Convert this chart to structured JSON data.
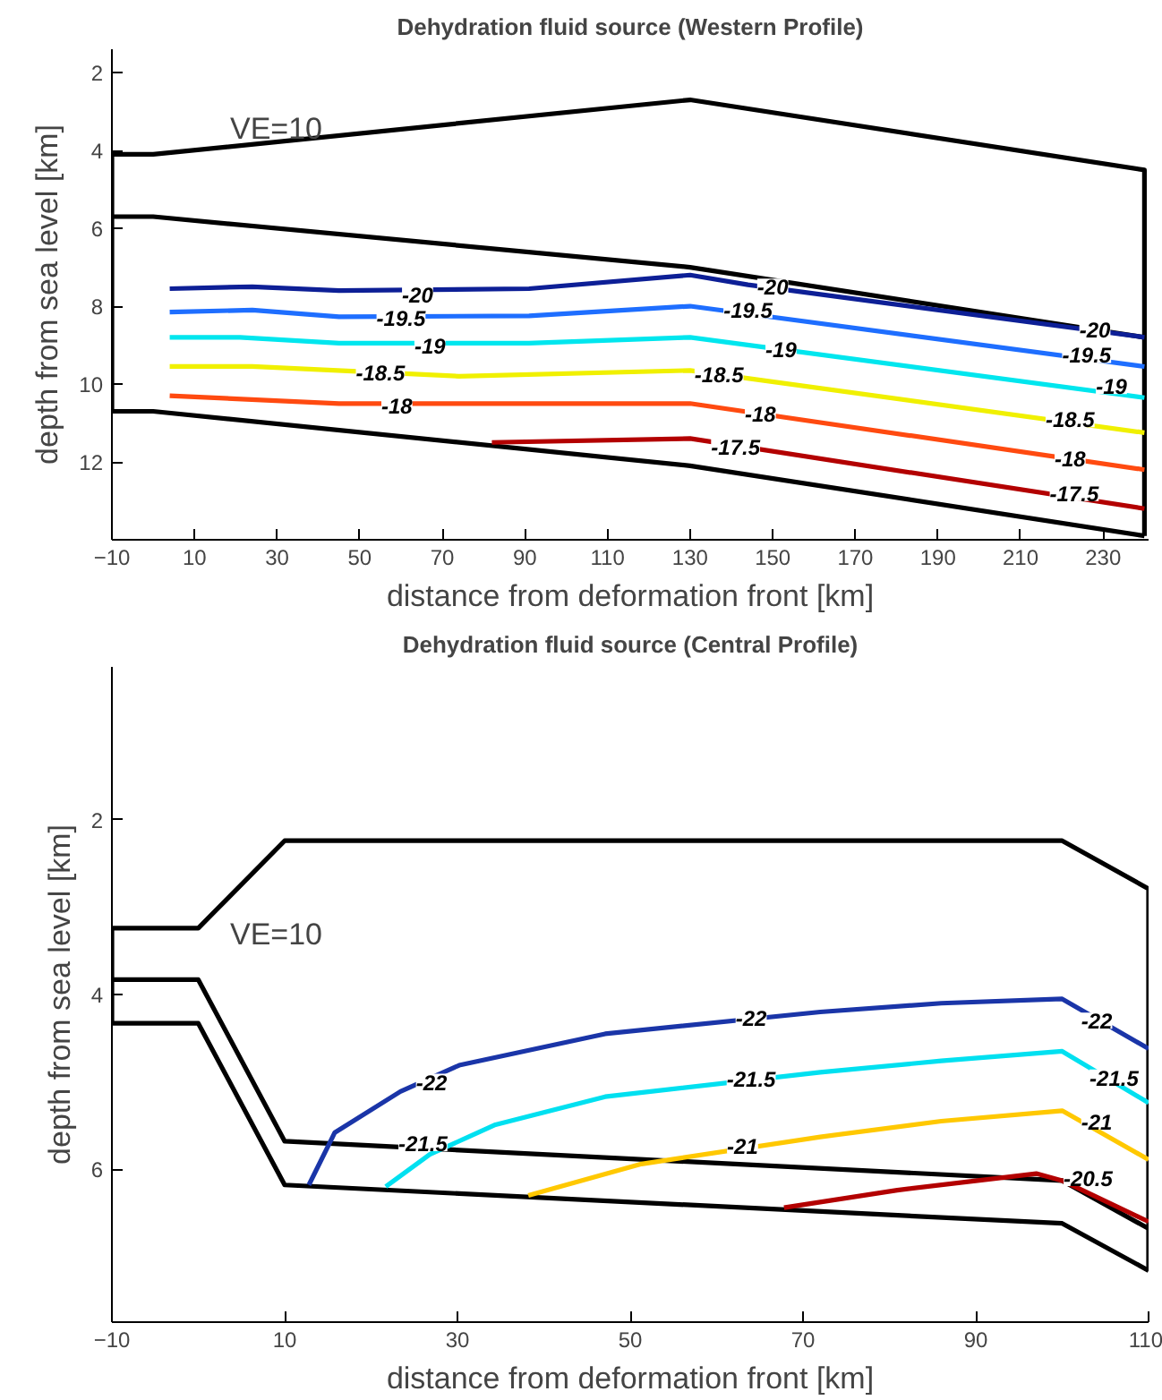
{
  "chart_data": [
    {
      "type": "line",
      "title": "Dehydration fluid source (Western Profile)",
      "xlabel": "distance from deformation front [km]",
      "ylabel": "depth from sea level [km]",
      "xlim": [
        -10,
        241
      ],
      "ylim": [
        14.0,
        1.4
      ],
      "xticks": [
        -10,
        10,
        30,
        50,
        70,
        90,
        110,
        130,
        150,
        170,
        190,
        210,
        230
      ],
      "yticks": [
        2,
        4,
        6,
        8,
        10,
        12
      ],
      "grid": false,
      "series": [
        {
          "color": "#000000",
          "x": [
            -10,
            -10,
            0,
            130,
            240,
            240
          ],
          "values": [
            10.7,
            4.1,
            4.1,
            2.7,
            4.5,
            13.9
          ]
        },
        {
          "color": "#000000",
          "x": [
            -10,
            0,
            130,
            240
          ],
          "values": [
            5.7,
            5.7,
            7.0,
            8.8
          ]
        },
        {
          "color": "#000000",
          "x": [
            -10,
            0,
            130,
            240
          ],
          "values": [
            10.7,
            10.7,
            12.1,
            13.9
          ]
        },
        {
          "color": "#0d1f96",
          "x": [
            4,
            24,
            45,
            91,
            130,
            144,
            240
          ],
          "values": [
            7.55,
            7.5,
            7.6,
            7.55,
            7.2,
            7.45,
            8.8
          ]
        },
        {
          "color": "#1e6eff",
          "x": [
            4,
            24,
            45,
            91,
            130,
            240
          ],
          "values": [
            8.15,
            8.1,
            8.27,
            8.25,
            8.0,
            9.55
          ]
        },
        {
          "color": "#00e6ee",
          "x": [
            4,
            21,
            45,
            91,
            130,
            240
          ],
          "values": [
            8.8,
            8.8,
            8.95,
            8.95,
            8.8,
            10.35
          ]
        },
        {
          "color": "#f0f000",
          "x": [
            4,
            24,
            74,
            130,
            240
          ],
          "values": [
            9.55,
            9.55,
            9.8,
            9.65,
            11.25
          ]
        },
        {
          "color": "#ff4a10",
          "x": [
            4,
            45,
            130,
            240
          ],
          "values": [
            10.3,
            10.5,
            10.5,
            12.2
          ]
        },
        {
          "color": "#b30000",
          "x": [
            82,
            130,
            240
          ],
          "values": [
            11.5,
            11.4,
            13.2
          ]
        }
      ],
      "annotations": [
        "VE=10",
        {
          "text": "-20",
          "x": 64,
          "y": 7.7
        },
        {
          "text": "-20",
          "x": 150,
          "y": 7.5
        },
        {
          "text": "-20",
          "x": 228,
          "y": 8.6
        },
        {
          "text": "-19.5",
          "x": 60,
          "y": 8.3
        },
        {
          "text": "-19.5",
          "x": 144,
          "y": 8.1
        },
        {
          "text": "-19.5",
          "x": 226,
          "y": 9.25
        },
        {
          "text": "-19",
          "x": 67,
          "y": 9.0
        },
        {
          "text": "-19",
          "x": 152,
          "y": 9.1
        },
        {
          "text": "-19",
          "x": 232,
          "y": 10.05
        },
        {
          "text": "-18.5",
          "x": 55,
          "y": 9.7
        },
        {
          "text": "-18.5",
          "x": 137,
          "y": 9.75
        },
        {
          "text": "-18.5",
          "x": 222,
          "y": 10.9
        },
        {
          "text": "-18",
          "x": 59,
          "y": 10.55
        },
        {
          "text": "-18",
          "x": 147,
          "y": 10.75
        },
        {
          "text": "-18",
          "x": 222,
          "y": 11.9
        },
        {
          "text": "-17.5",
          "x": 141,
          "y": 11.6
        },
        {
          "text": "-17.5",
          "x": 223,
          "y": 12.8
        }
      ]
    },
    {
      "type": "line",
      "title": "Dehydration fluid source (Central Profile)",
      "xlabel": "distance from deformation front [km]",
      "ylabel": "depth from sea level [km]",
      "xlim": [
        -10,
        110
      ],
      "ylim": [
        7.75,
        0.25
      ],
      "xticks": [
        -10,
        10,
        30,
        50,
        70,
        90,
        110
      ],
      "yticks": [
        2,
        4,
        6
      ],
      "grid": false,
      "series": [
        {
          "color": "#000000",
          "x": [
            -10,
            -10,
            0,
            10,
            100,
            110,
            110
          ],
          "values": [
            4.33,
            3.24,
            3.24,
            2.24,
            2.24,
            2.79,
            7.16
          ]
        },
        {
          "color": "#000000",
          "x": [
            -10,
            0,
            10,
            100,
            110
          ],
          "values": [
            3.83,
            3.83,
            5.68,
            6.13,
            6.68
          ]
        },
        {
          "color": "#000000",
          "x": [
            -10,
            0,
            10,
            100,
            110
          ],
          "values": [
            4.33,
            4.33,
            6.18,
            6.62,
            7.16
          ]
        },
        {
          "color": "#1a35a8",
          "x": [
            12.8,
            15.8,
            23.4,
            30.2,
            47.1,
            72,
            86,
            100,
            110
          ],
          "values": [
            6.18,
            5.58,
            5.11,
            4.81,
            4.45,
            4.2,
            4.1,
            4.05,
            4.62
          ]
        },
        {
          "color": "#00e0f0",
          "x": [
            21.7,
            26.8,
            34.4,
            47.1,
            72,
            86,
            100,
            110
          ],
          "values": [
            6.2,
            5.83,
            5.49,
            5.17,
            4.89,
            4.76,
            4.65,
            5.24
          ]
        },
        {
          "color": "#ffc800",
          "x": [
            38.2,
            51.3,
            72,
            86,
            100,
            110
          ],
          "values": [
            6.3,
            5.94,
            5.63,
            5.45,
            5.33,
            5.89
          ]
        },
        {
          "color": "#b30000",
          "x": [
            67.8,
            80.9,
            97,
            100,
            110
          ],
          "values": [
            6.44,
            6.24,
            6.05,
            6.13,
            6.6
          ]
        }
      ],
      "annotations": [
        "VE=10",
        {
          "text": "-22",
          "x": 27,
          "y": 5.0
        },
        {
          "text": "-22",
          "x": 64,
          "y": 4.27
        },
        {
          "text": "-22",
          "x": 104,
          "y": 4.3
        },
        {
          "text": "-21.5",
          "x": 26,
          "y": 5.7
        },
        {
          "text": "-21.5",
          "x": 64,
          "y": 4.96
        },
        {
          "text": "-21.5",
          "x": 106,
          "y": 4.95
        },
        {
          "text": "-21",
          "x": 63,
          "y": 5.73
        },
        {
          "text": "-21",
          "x": 104,
          "y": 5.45
        },
        {
          "text": "-20.5",
          "x": 103,
          "y": 6.1
        }
      ]
    }
  ]
}
